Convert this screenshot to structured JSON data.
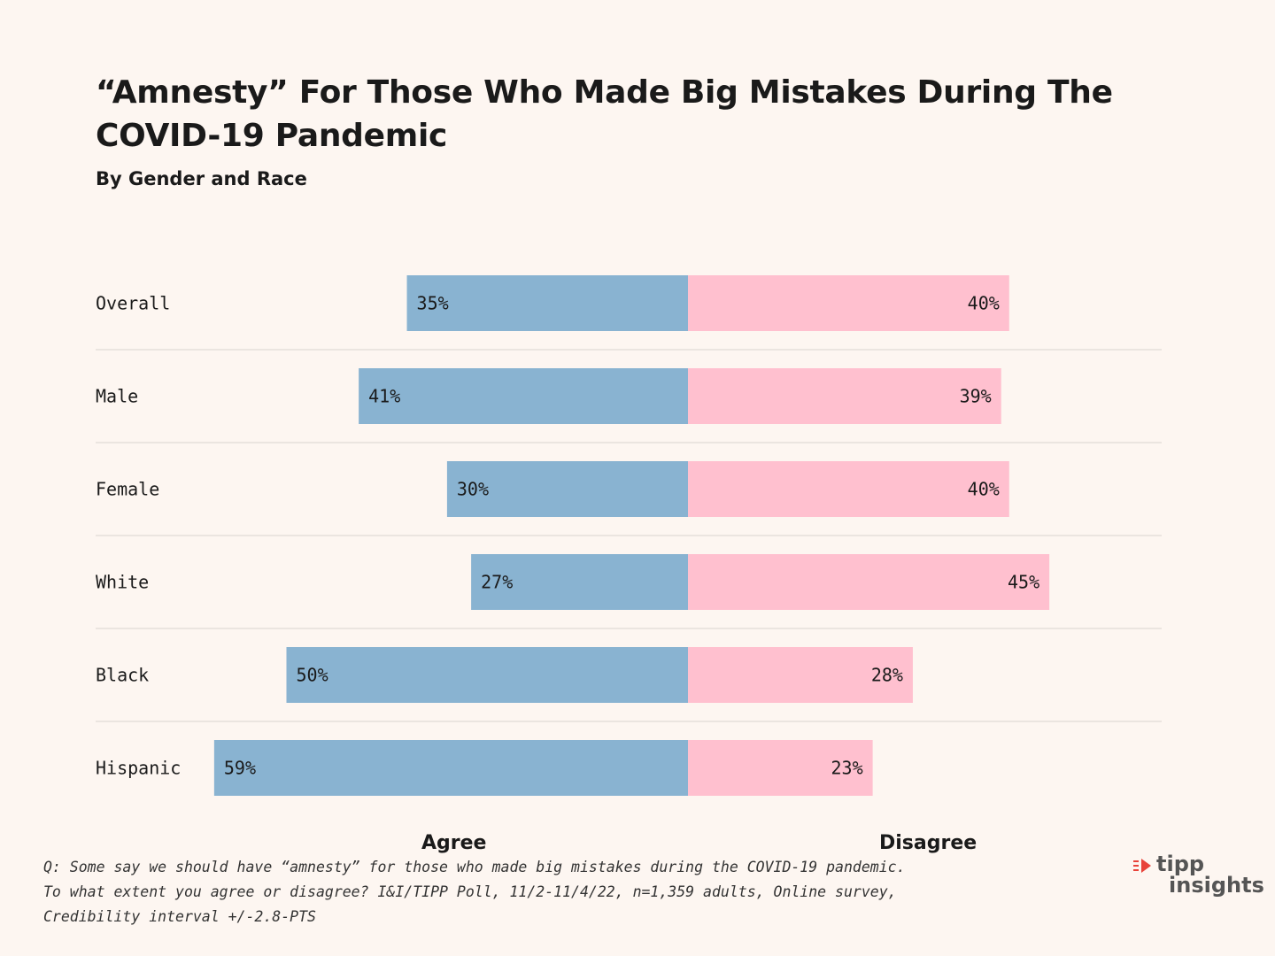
{
  "title_line1": "“Amnesty” For Those Who Made Big Mistakes During The",
  "title_line2": "COVID-19 Pandemic",
  "subtitle": "By Gender and Race",
  "chart_data": {
    "type": "bar",
    "orientation": "horizontal-diverging",
    "categories": [
      "Overall",
      "Male",
      "Female",
      "White",
      "Black",
      "Hispanic"
    ],
    "series": [
      {
        "name": "Agree",
        "values": [
          35,
          41,
          30,
          27,
          50,
          59
        ],
        "labels": [
          "35%",
          "41%",
          "30%",
          "27%",
          "50%",
          "59%"
        ],
        "color": "#89b3d1"
      },
      {
        "name": "Disagree",
        "values": [
          40,
          39,
          40,
          45,
          28,
          23
        ],
        "labels": [
          "40%",
          "39%",
          "40%",
          "45%",
          "28%",
          "23%"
        ],
        "color": "#ffc0cf"
      }
    ],
    "title": "“Amnesty” For Those Who Made Big Mistakes During The COVID-19 Pandemic",
    "subtitle": "By Gender and Race",
    "legend": [
      "Agree",
      "Disagree"
    ]
  },
  "legend": {
    "agree": "Agree",
    "disagree": "Disagree"
  },
  "footnote": {
    "line1": "Q: Some say we should have “amnesty” for those who made big mistakes during the COVID-19 pandemic.",
    "line2": "To what extent you agree or disagree? I&I/TIPP Poll, 11/2-11/4/22, n=1,359 adults, Online survey,",
    "line3": "Credibility interval +/-2.8-PTS"
  },
  "logo": {
    "line1": "tipp",
    "line2": "insights",
    "accent": "#e8433a"
  },
  "colors": {
    "background": "#fdf6f1",
    "agree": "#89b3d1",
    "disagree": "#ffc0cf",
    "divider": "#d9d4d0"
  }
}
